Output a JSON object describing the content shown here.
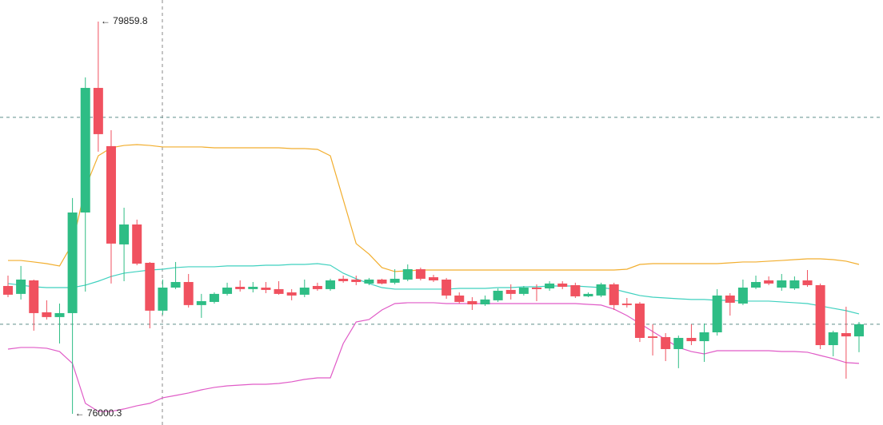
{
  "chart_data": {
    "type": "candlestick",
    "ylim": [
      75890,
      80072
    ],
    "colors": {
      "up": "#2ebd85",
      "down": "#f0515f"
    },
    "open": [
      77258,
      77180,
      77313,
      76999,
      76952,
      76991,
      77981,
      79207,
      78634,
      77667,
      77863,
      77486,
      77015,
      77242,
      77297,
      77070,
      77101,
      77180,
      77250,
      77227,
      77242,
      77227,
      77195,
      77172,
      77258,
      77227,
      77329,
      77321,
      77282,
      77321,
      77290,
      77321,
      77423,
      77344,
      77321,
      77164,
      77109,
      77077,
      77117,
      77219,
      77180,
      77242,
      77234,
      77282,
      77266,
      77156,
      77164,
      77274,
      77085,
      77085,
      76762,
      76755,
      76637,
      76747,
      76715,
      76802,
      77164,
      77085,
      77242,
      77313,
      77242,
      77234,
      77313,
      77266,
      76676,
      76794,
      76762
    ],
    "high": [
      77360,
      77455,
      77321,
      77117,
      77085,
      78123,
      79310,
      79859.8,
      78791,
      78028,
      77911,
      77494,
      77321,
      77494,
      77376,
      77180,
      77195,
      77290,
      77313,
      77297,
      77297,
      77305,
      77227,
      77321,
      77290,
      77329,
      77360,
      77360,
      77337,
      77329,
      77423,
      77470,
      77439,
      77368,
      77337,
      77195,
      77148,
      77164,
      77234,
      77274,
      77258,
      77274,
      77305,
      77305,
      77290,
      77195,
      77290,
      77290,
      77140,
      77101,
      76881,
      76794,
      76770,
      76881,
      76889,
      77227,
      77187,
      77321,
      77360,
      77352,
      77376,
      77352,
      77415,
      77282,
      76818,
      77054,
      76904
    ],
    "low": [
      77148,
      77125,
      76818,
      76928,
      76692,
      76000.3,
      77203,
      78579,
      77282,
      77305,
      77462,
      76841,
      76975,
      77227,
      77046,
      76944,
      77085,
      77164,
      77203,
      77195,
      77187,
      77172,
      77117,
      77148,
      77211,
      77211,
      77290,
      77266,
      77266,
      77274,
      77274,
      77305,
      77313,
      77297,
      77132,
      77085,
      77022,
      77062,
      77101,
      77125,
      77164,
      77109,
      77211,
      77227,
      77140,
      77148,
      77148,
      77022,
      77046,
      76707,
      76574,
      76519,
      76449,
      76676,
      76511,
      76770,
      76967,
      77070,
      77227,
      77266,
      77211,
      77219,
      77250,
      76637,
      76566,
      76346,
      76606
    ],
    "close": [
      77172,
      77321,
      76991,
      76952,
      76991,
      77981,
      79207,
      78752,
      77675,
      77863,
      77478,
      77015,
      77242,
      77297,
      77070,
      77109,
      77180,
      77242,
      77227,
      77250,
      77219,
      77180,
      77164,
      77242,
      77227,
      77313,
      77305,
      77297,
      77321,
      77282,
      77329,
      77423,
      77329,
      77313,
      77164,
      77101,
      77077,
      77125,
      77211,
      77180,
      77242,
      77227,
      77282,
      77250,
      77156,
      77180,
      77274,
      77070,
      77070,
      76747,
      76747,
      76637,
      76747,
      76715,
      76802,
      77164,
      77093,
      77242,
      77297,
      77282,
      77313,
      77313,
      77266,
      76676,
      76802,
      76762,
      76881
    ],
    "lines": [
      {
        "color": "#f2ae2e",
        "values": [
          77509,
          77509,
          77494,
          77478,
          77455,
          77675,
          78225,
          78539,
          78618,
          78641,
          78649,
          78641,
          78626,
          78626,
          78626,
          78626,
          78618,
          78618,
          78618,
          78618,
          78618,
          78618,
          78610,
          78610,
          78602,
          78539,
          78107,
          77675,
          77572,
          77439,
          77400,
          77407,
          77415,
          77415,
          77415,
          77415,
          77415,
          77415,
          77415,
          77415,
          77415,
          77415,
          77415,
          77415,
          77415,
          77415,
          77415,
          77415,
          77423,
          77470,
          77478,
          77478,
          77478,
          77478,
          77478,
          77478,
          77486,
          77494,
          77494,
          77502,
          77509,
          77517,
          77525,
          77525,
          77517,
          77502,
          77470
        ]
      },
      {
        "color": "#3fd1bf",
        "values": [
          77282,
          77266,
          77250,
          77242,
          77242,
          77242,
          77266,
          77305,
          77352,
          77384,
          77400,
          77415,
          77423,
          77439,
          77447,
          77447,
          77447,
          77455,
          77455,
          77455,
          77462,
          77462,
          77470,
          77470,
          77478,
          77462,
          77384,
          77329,
          77282,
          77242,
          77227,
          77227,
          77227,
          77227,
          77227,
          77234,
          77234,
          77234,
          77242,
          77242,
          77250,
          77250,
          77258,
          77258,
          77258,
          77250,
          77242,
          77227,
          77195,
          77164,
          77148,
          77140,
          77132,
          77125,
          77125,
          77117,
          77117,
          77109,
          77109,
          77109,
          77101,
          77093,
          77085,
          77062,
          77038,
          77015,
          76983
        ]
      },
      {
        "color": "#e05bc7",
        "values": [
          76637,
          76653,
          76653,
          76645,
          76613,
          76496,
          76103,
          76024,
          76024,
          76048,
          76079,
          76103,
          76158,
          76181,
          76205,
          76236,
          76260,
          76275,
          76283,
          76291,
          76291,
          76299,
          76315,
          76339,
          76354,
          76354,
          76692,
          76904,
          76928,
          77022,
          77085,
          77093,
          77093,
          77093,
          77085,
          77085,
          77085,
          77085,
          77085,
          77085,
          77085,
          77085,
          77085,
          77085,
          77085,
          77077,
          77070,
          77030,
          76967,
          76889,
          76810,
          76731,
          76653,
          76613,
          76590,
          76621,
          76621,
          76621,
          76621,
          76621,
          76613,
          76613,
          76606,
          76574,
          76543,
          76504,
          76496
        ]
      }
    ],
    "reference_lines": [
      78917,
      76881
    ],
    "annotations": [
      {
        "label": "← 79859.8",
        "value": 79859.8
      },
      {
        "label": "← 76000.3",
        "value": 76000.3
      }
    ]
  }
}
